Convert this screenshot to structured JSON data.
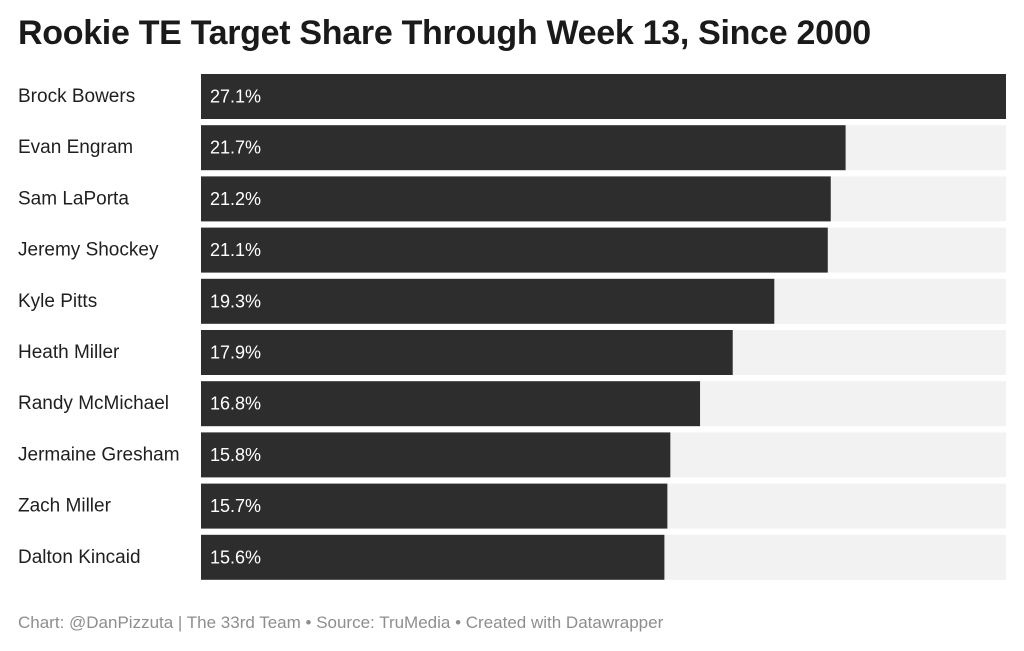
{
  "chart_data": {
    "type": "bar",
    "orientation": "horizontal",
    "title": "Rookie TE Target Share Through Week 13, Since 2000",
    "categories": [
      "Brock Bowers",
      "Evan Engram",
      "Sam LaPorta",
      "Jeremy Shockey",
      "Kyle Pitts",
      "Heath Miller",
      "Randy McMichael",
      "Jermaine Gresham",
      "Zach Miller",
      "Dalton Kincaid"
    ],
    "values": [
      27.1,
      21.7,
      21.2,
      21.1,
      19.3,
      17.9,
      16.8,
      15.8,
      15.7,
      15.6
    ],
    "value_labels": [
      "27.1%",
      "21.7%",
      "21.2%",
      "21.1%",
      "19.3%",
      "17.9%",
      "16.8%",
      "15.8%",
      "15.7%",
      "15.6%"
    ],
    "xlim": [
      0,
      27.1
    ],
    "grid": false,
    "legend": "none",
    "colors": {
      "bar": "#2d2d2d",
      "track": "#f2f2f2",
      "value_text": "#ffffff"
    }
  },
  "footer": {
    "credit": "Chart: @DanPizzuta | The 33rd Team • Source: TruMedia • Created with Datawrapper"
  }
}
